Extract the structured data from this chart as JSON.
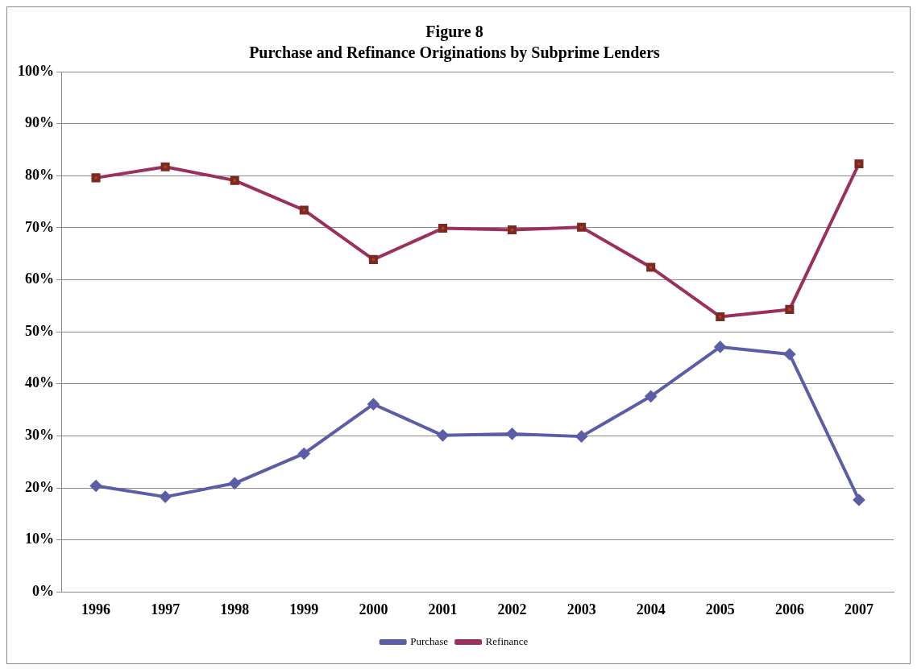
{
  "chart_data": {
    "type": "line",
    "title": "Figure 8",
    "subtitle": "Purchase and Refinance Originations by Subprime Lenders",
    "categories": [
      "1996",
      "1997",
      "1998",
      "1999",
      "2000",
      "2001",
      "2002",
      "2003",
      "2004",
      "2005",
      "2006",
      "2007"
    ],
    "series": [
      {
        "name": "Purchase",
        "color": "#5b5ea6",
        "marker": "diamond",
        "values": [
          20.4,
          18.3,
          20.9,
          26.6,
          36.1,
          30.1,
          30.4,
          29.9,
          37.6,
          47.1,
          45.7,
          17.7
        ]
      },
      {
        "name": "Refinance",
        "color": "#9b2f5e",
        "marker": "square",
        "values": [
          79.6,
          81.7,
          79.1,
          73.4,
          63.9,
          69.9,
          69.6,
          70.1,
          62.4,
          52.9,
          54.3,
          82.3
        ]
      }
    ],
    "ylim": [
      0,
      100
    ],
    "yticks": [
      {
        "value": 0,
        "label": "0%"
      },
      {
        "value": 10,
        "label": "10%"
      },
      {
        "value": 20,
        "label": "20%"
      },
      {
        "value": 30,
        "label": "30%"
      },
      {
        "value": 40,
        "label": "40%"
      },
      {
        "value": 50,
        "label": "50%"
      },
      {
        "value": 60,
        "label": "60%"
      },
      {
        "value": 70,
        "label": "70%"
      },
      {
        "value": 80,
        "label": "80%"
      },
      {
        "value": 90,
        "label": "90%"
      },
      {
        "value": 100,
        "label": "100%"
      }
    ],
    "grid": "y",
    "legend": "bottom",
    "line_style": "solid"
  }
}
